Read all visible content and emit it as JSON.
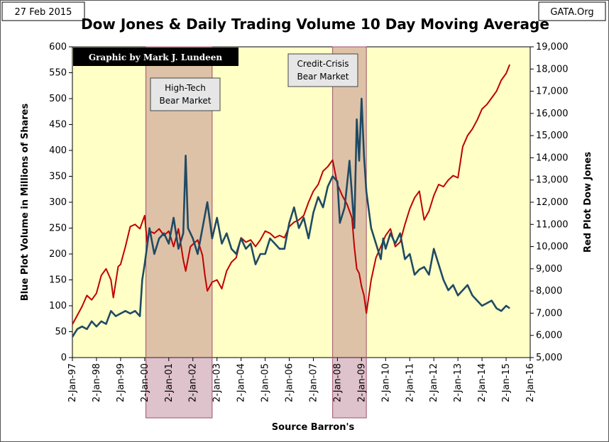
{
  "header": {
    "date_label": "27 Feb 2015",
    "site_label": "GATA.Org",
    "credit_label": "Graphic by Mark J. Lundeen"
  },
  "colors": {
    "plot_bg": "#ffffc6",
    "volume_line": "#1f4a63",
    "dow_line": "#c00000",
    "bear_fill": "#a0506e",
    "credit_bg": "#000000"
  },
  "chart_data": {
    "type": "line",
    "title": "Dow Jones & Daily Trading Volume 10 Day Moving Average",
    "xlabel": "Source Barron's",
    "ylabel": "Blue Plot  Volume in Millions of Shares",
    "y2label": "Red Plot  Dow Jones",
    "x_range": [
      1997,
      2016
    ],
    "x_ticks": [
      {
        "x": 1997,
        "label": "2-Jan-97"
      },
      {
        "x": 1998,
        "label": "2-Jan-98"
      },
      {
        "x": 1999,
        "label": "2-Jan-99"
      },
      {
        "x": 2000,
        "label": "2-Jan-00"
      },
      {
        "x": 2001,
        "label": "2-Jan-01"
      },
      {
        "x": 2002,
        "label": "2-Jan-02"
      },
      {
        "x": 2003,
        "label": "2-Jan-03"
      },
      {
        "x": 2004,
        "label": "2-Jan-04"
      },
      {
        "x": 2005,
        "label": "2-Jan-05"
      },
      {
        "x": 2006,
        "label": "2-Jan-06"
      },
      {
        "x": 2007,
        "label": "2-Jan-07"
      },
      {
        "x": 2008,
        "label": "2-Jan-08"
      },
      {
        "x": 2009,
        "label": "2-Jan-09"
      },
      {
        "x": 2010,
        "label": "2-Jan-10"
      },
      {
        "x": 2011,
        "label": "2-Jan-11"
      },
      {
        "x": 2012,
        "label": "2-Jan-12"
      },
      {
        "x": 2013,
        "label": "2-Jan-13"
      },
      {
        "x": 2014,
        "label": "2-Jan-14"
      },
      {
        "x": 2015,
        "label": "2-Jan-15"
      },
      {
        "x": 2016,
        "label": "2-Jan-16"
      }
    ],
    "y_left": {
      "min": 0,
      "max": 600,
      "step": 50,
      "tick_labels": [
        "0",
        "50",
        "100",
        "150",
        "200",
        "250",
        "300",
        "350",
        "400",
        "450",
        "500",
        "550",
        "600"
      ]
    },
    "y_right": {
      "min": 5000,
      "max": 19000,
      "step": 1000,
      "tick_labels": [
        "5,000",
        "6,000",
        "7,000",
        "8,000",
        "9,000",
        "10,000",
        "11,000",
        "12,000",
        "13,000",
        "14,000",
        "15,000",
        "16,000",
        "17,000",
        "18,000",
        "19,000"
      ]
    },
    "shaded_regions": [
      {
        "label_lines": [
          "High-Tech",
          "Bear Market"
        ],
        "x_start": 2000.05,
        "x_end": 2002.8
      },
      {
        "label_lines": [
          "Credit-Crisis",
          "Bear Market"
        ],
        "x_start": 2007.8,
        "x_end": 2009.2
      }
    ],
    "grid": false,
    "series": [
      {
        "name": "Dow Jones",
        "axis": "right",
        "x": [
          1997.0,
          1997.2,
          1997.4,
          1997.6,
          1997.8,
          1998.0,
          1998.2,
          1998.4,
          1998.6,
          1998.7,
          1998.9,
          1999.0,
          1999.2,
          1999.4,
          1999.6,
          1999.8,
          2000.0,
          2000.1,
          2000.2,
          2000.4,
          2000.6,
          2000.8,
          2001.0,
          2001.2,
          2001.4,
          2001.6,
          2001.7,
          2001.9,
          2002.0,
          2002.2,
          2002.4,
          2002.5,
          2002.6,
          2002.8,
          2003.0,
          2003.2,
          2003.4,
          2003.6,
          2003.8,
          2004.0,
          2004.2,
          2004.4,
          2004.6,
          2004.8,
          2005.0,
          2005.2,
          2005.4,
          2005.6,
          2005.8,
          2006.0,
          2006.2,
          2006.4,
          2006.6,
          2006.8,
          2007.0,
          2007.2,
          2007.4,
          2007.6,
          2007.8,
          2008.0,
          2008.2,
          2008.4,
          2008.6,
          2008.7,
          2008.8,
          2008.9,
          2009.0,
          2009.1,
          2009.2,
          2009.4,
          2009.6,
          2009.8,
          2010.0,
          2010.2,
          2010.4,
          2010.6,
          2010.8,
          2011.0,
          2011.2,
          2011.4,
          2011.6,
          2011.8,
          2012.0,
          2012.2,
          2012.4,
          2012.6,
          2012.8,
          2013.0,
          2013.2,
          2013.4,
          2013.6,
          2013.8,
          2014.0,
          2014.2,
          2014.4,
          2014.6,
          2014.8,
          2015.0,
          2015.15
        ],
        "y": [
          6500,
          6900,
          7300,
          7800,
          7600,
          7900,
          8700,
          9000,
          8500,
          7700,
          9100,
          9200,
          10000,
          10900,
          11000,
          10800,
          11400,
          10200,
          10700,
          10600,
          10800,
          10500,
          10700,
          10000,
          10800,
          9400,
          8900,
          10000,
          10100,
          10300,
          9600,
          8700,
          8000,
          8400,
          8500,
          8100,
          8900,
          9300,
          9500,
          10400,
          10200,
          10300,
          10000,
          10300,
          10700,
          10600,
          10400,
          10500,
          10400,
          10900,
          11100,
          11200,
          11400,
          12000,
          12500,
          12800,
          13400,
          13600,
          13900,
          12800,
          12300,
          11900,
          11300,
          10000,
          9000,
          8800,
          8200,
          7800,
          7000,
          8500,
          9500,
          10000,
          10500,
          10800,
          10000,
          10200,
          11000,
          11700,
          12200,
          12500,
          11200,
          11600,
          12300,
          12800,
          12700,
          13000,
          13200,
          13100,
          14500,
          15000,
          15300,
          15700,
          16200,
          16400,
          16700,
          17000,
          17500,
          17800,
          18200
        ]
      },
      {
        "name": "Daily Trading Volume 10 Day Moving Average",
        "axis": "left",
        "x": [
          1997.0,
          1997.2,
          1997.4,
          1997.6,
          1997.8,
          1998.0,
          1998.2,
          1998.4,
          1998.6,
          1998.8,
          1999.0,
          1999.2,
          1999.4,
          1999.6,
          1999.8,
          1999.9,
          2000.0,
          2000.2,
          2000.4,
          2000.6,
          2000.8,
          2001.0,
          2001.2,
          2001.4,
          2001.6,
          2001.7,
          2001.8,
          2002.0,
          2002.2,
          2002.4,
          2002.6,
          2002.8,
          2003.0,
          2003.2,
          2003.4,
          2003.6,
          2003.8,
          2004.0,
          2004.2,
          2004.4,
          2004.6,
          2004.8,
          2005.0,
          2005.2,
          2005.4,
          2005.6,
          2005.8,
          2006.0,
          2006.2,
          2006.4,
          2006.6,
          2006.8,
          2007.0,
          2007.2,
          2007.4,
          2007.6,
          2007.8,
          2008.0,
          2008.1,
          2008.3,
          2008.5,
          2008.7,
          2008.8,
          2008.9,
          2009.0,
          2009.1,
          2009.2,
          2009.4,
          2009.6,
          2009.8,
          2009.9,
          2010.0,
          2010.2,
          2010.4,
          2010.6,
          2010.8,
          2011.0,
          2011.2,
          2011.4,
          2011.6,
          2011.8,
          2012.0,
          2012.2,
          2012.4,
          2012.6,
          2012.8,
          2013.0,
          2013.2,
          2013.4,
          2013.6,
          2013.8,
          2014.0,
          2014.2,
          2014.4,
          2014.6,
          2014.8,
          2015.0,
          2015.15
        ],
        "y": [
          40,
          55,
          60,
          55,
          70,
          60,
          70,
          65,
          90,
          80,
          85,
          90,
          85,
          90,
          80,
          150,
          180,
          250,
          200,
          230,
          240,
          220,
          270,
          210,
          240,
          390,
          250,
          230,
          200,
          250,
          300,
          230,
          270,
          220,
          240,
          210,
          200,
          230,
          210,
          220,
          180,
          200,
          200,
          230,
          220,
          210,
          210,
          260,
          290,
          250,
          270,
          230,
          280,
          310,
          290,
          330,
          350,
          340,
          260,
          290,
          380,
          250,
          460,
          380,
          500,
          390,
          320,
          250,
          220,
          190,
          230,
          210,
          240,
          220,
          240,
          190,
          200,
          160,
          170,
          175,
          160,
          210,
          180,
          150,
          130,
          140,
          120,
          130,
          140,
          120,
          110,
          100,
          105,
          110,
          95,
          90,
          100,
          95
        ]
      }
    ]
  }
}
